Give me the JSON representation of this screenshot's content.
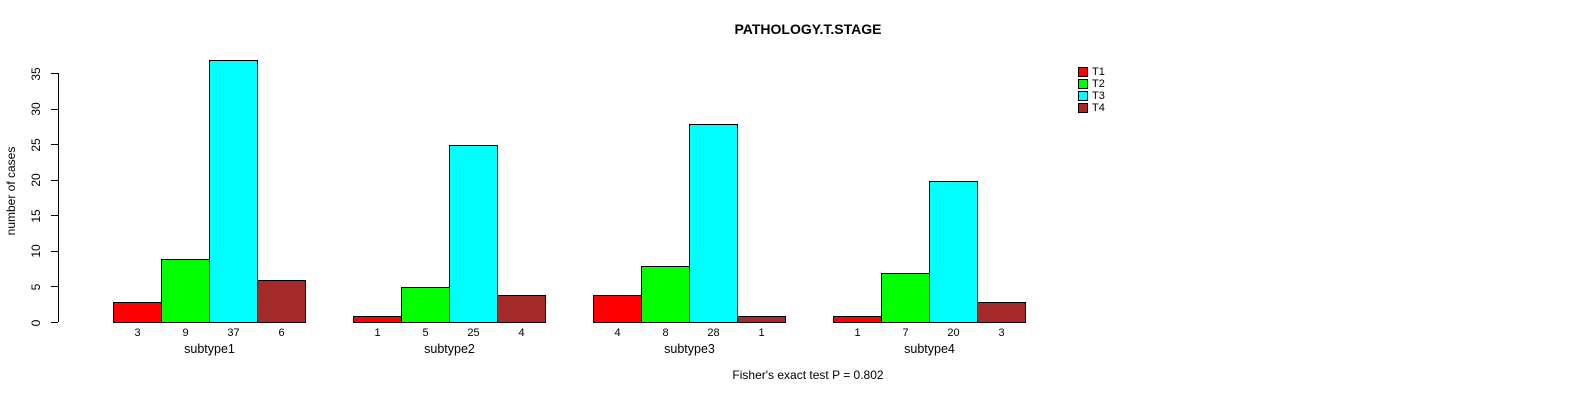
{
  "chart_data": {
    "type": "bar",
    "grouped": true,
    "title": "PATHOLOGY.T.STAGE",
    "xlabel": "",
    "ylabel": "number of cases",
    "categories": [
      "subtype1",
      "subtype2",
      "subtype3",
      "subtype4"
    ],
    "series": [
      {
        "name": "T1",
        "color": "#FF0000",
        "values": [
          3,
          1,
          4,
          1
        ]
      },
      {
        "name": "T2",
        "color": "#00FF00",
        "values": [
          9,
          5,
          8,
          7
        ]
      },
      {
        "name": "T3",
        "color": "#00FFFF",
        "values": [
          37,
          25,
          28,
          20
        ]
      },
      {
        "name": "T4",
        "color": "#A52A2A",
        "values": [
          6,
          4,
          1,
          3
        ]
      }
    ],
    "bar_value_labels": {
      "subtype1": [
        3,
        9,
        37,
        6
      ],
      "subtype2": [
        1,
        5,
        25,
        4
      ],
      "subtype3": [
        4,
        8,
        28,
        1
      ],
      "subtype4": [
        1,
        7,
        20,
        3
      ]
    },
    "yticks": [
      0,
      5,
      10,
      15,
      20,
      25,
      30,
      35
    ],
    "ylim": [
      0,
      37
    ],
    "grid": false,
    "legend": {
      "position": "top-right",
      "entries": [
        "T1",
        "T2",
        "T3",
        "T4"
      ]
    },
    "annotation": "Fisher's exact test P = 0.802"
  }
}
